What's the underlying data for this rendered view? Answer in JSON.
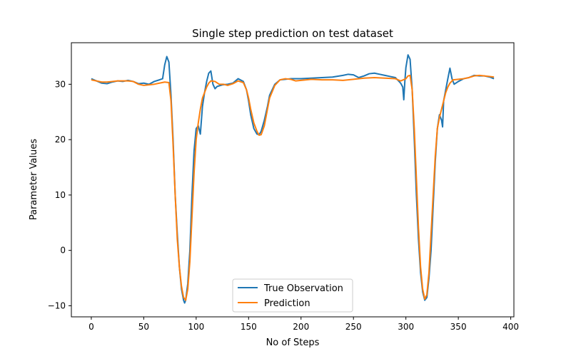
{
  "chart_data": {
    "type": "line",
    "title": "Single step prediction on test dataset",
    "xlabel": "No of Steps",
    "ylabel": "Parameter Values",
    "xlim": [
      -19,
      403
    ],
    "ylim": [
      -12,
      37.5
    ],
    "xticks": [
      0,
      50,
      100,
      150,
      200,
      250,
      300,
      350,
      400
    ],
    "yticks": [
      -10,
      0,
      10,
      20,
      30
    ],
    "ytick_labels": [
      "−10",
      "0",
      "10",
      "20",
      "30"
    ],
    "grid": false,
    "legend_position": "lower center",
    "series": [
      {
        "name": "True Observation",
        "color": "#1f77b4",
        "points": [
          [
            0,
            31.0
          ],
          [
            5,
            30.6
          ],
          [
            10,
            30.2
          ],
          [
            15,
            30.1
          ],
          [
            20,
            30.4
          ],
          [
            25,
            30.6
          ],
          [
            30,
            30.5
          ],
          [
            35,
            30.7
          ],
          [
            40,
            30.5
          ],
          [
            45,
            30.1
          ],
          [
            50,
            30.2
          ],
          [
            55,
            30.0
          ],
          [
            60,
            30.5
          ],
          [
            65,
            30.8
          ],
          [
            68,
            31.0
          ],
          [
            70,
            33.5
          ],
          [
            72,
            35.0
          ],
          [
            74,
            34.0
          ],
          [
            76,
            28.0
          ],
          [
            78,
            20.0
          ],
          [
            80,
            10.0
          ],
          [
            82,
            3.0
          ],
          [
            84,
            -3.0
          ],
          [
            86,
            -7.0
          ],
          [
            88,
            -9.0
          ],
          [
            89,
            -9.5
          ],
          [
            90,
            -9.0
          ],
          [
            92,
            -6.0
          ],
          [
            94,
            0.0
          ],
          [
            96,
            10.0
          ],
          [
            98,
            18.0
          ],
          [
            100,
            22.0
          ],
          [
            102,
            22.5
          ],
          [
            104,
            21.0
          ],
          [
            106,
            26.0
          ],
          [
            108,
            28.5
          ],
          [
            110,
            30.5
          ],
          [
            112,
            32.0
          ],
          [
            114,
            32.4
          ],
          [
            116,
            30.0
          ],
          [
            118,
            29.2
          ],
          [
            120,
            29.6
          ],
          [
            125,
            29.9
          ],
          [
            130,
            30.0
          ],
          [
            135,
            30.2
          ],
          [
            140,
            31.0
          ],
          [
            145,
            30.5
          ],
          [
            148,
            29.0
          ],
          [
            150,
            27.0
          ],
          [
            152,
            24.5
          ],
          [
            155,
            22.0
          ],
          [
            158,
            21.0
          ],
          [
            160,
            20.9
          ],
          [
            162,
            21.5
          ],
          [
            165,
            23.5
          ],
          [
            168,
            26.0
          ],
          [
            170,
            28.0
          ],
          [
            175,
            30.0
          ],
          [
            180,
            30.8
          ],
          [
            185,
            30.9
          ],
          [
            190,
            31.0
          ],
          [
            195,
            31.0
          ],
          [
            200,
            31.0
          ],
          [
            210,
            31.1
          ],
          [
            220,
            31.2
          ],
          [
            230,
            31.3
          ],
          [
            240,
            31.6
          ],
          [
            245,
            31.8
          ],
          [
            250,
            31.7
          ],
          [
            255,
            31.2
          ],
          [
            260,
            31.5
          ],
          [
            265,
            31.9
          ],
          [
            270,
            32.0
          ],
          [
            275,
            31.8
          ],
          [
            280,
            31.6
          ],
          [
            285,
            31.4
          ],
          [
            290,
            31.2
          ],
          [
            295,
            30.2
          ],
          [
            297,
            29.5
          ],
          [
            298,
            27.2
          ],
          [
            299,
            30.5
          ],
          [
            300,
            33.0
          ],
          [
            302,
            35.3
          ],
          [
            304,
            34.5
          ],
          [
            306,
            29.0
          ],
          [
            308,
            20.0
          ],
          [
            310,
            10.0
          ],
          [
            312,
            2.0
          ],
          [
            314,
            -4.0
          ],
          [
            316,
            -7.5
          ],
          [
            318,
            -9.0
          ],
          [
            320,
            -8.5
          ],
          [
            322,
            -5.0
          ],
          [
            324,
            0.0
          ],
          [
            326,
            8.0
          ],
          [
            328,
            16.0
          ],
          [
            330,
            22.0
          ],
          [
            332,
            24.5
          ],
          [
            334,
            23.5
          ],
          [
            335,
            22.3
          ],
          [
            336,
            27.0
          ],
          [
            338,
            29.0
          ],
          [
            340,
            31.0
          ],
          [
            342,
            32.9
          ],
          [
            344,
            31.0
          ],
          [
            346,
            30.0
          ],
          [
            350,
            30.5
          ],
          [
            355,
            31.0
          ],
          [
            360,
            31.2
          ],
          [
            365,
            31.6
          ],
          [
            370,
            31.5
          ],
          [
            375,
            31.5
          ],
          [
            380,
            31.3
          ],
          [
            384,
            31.0
          ]
        ]
      },
      {
        "name": "Prediction",
        "color": "#ff7f0e",
        "points": [
          [
            0,
            30.8
          ],
          [
            5,
            30.6
          ],
          [
            10,
            30.4
          ],
          [
            15,
            30.4
          ],
          [
            20,
            30.5
          ],
          [
            25,
            30.6
          ],
          [
            30,
            30.6
          ],
          [
            35,
            30.6
          ],
          [
            40,
            30.5
          ],
          [
            45,
            30.0
          ],
          [
            50,
            29.8
          ],
          [
            55,
            29.9
          ],
          [
            60,
            30.0
          ],
          [
            65,
            30.2
          ],
          [
            70,
            30.4
          ],
          [
            74,
            30.3
          ],
          [
            76,
            27.0
          ],
          [
            78,
            19.0
          ],
          [
            80,
            10.0
          ],
          [
            82,
            2.0
          ],
          [
            84,
            -3.0
          ],
          [
            86,
            -6.5
          ],
          [
            88,
            -8.5
          ],
          [
            90,
            -9.0
          ],
          [
            92,
            -7.0
          ],
          [
            94,
            -2.0
          ],
          [
            96,
            6.0
          ],
          [
            98,
            14.0
          ],
          [
            100,
            20.0
          ],
          [
            102,
            23.0
          ],
          [
            104,
            25.5
          ],
          [
            106,
            27.5
          ],
          [
            108,
            28.5
          ],
          [
            110,
            29.5
          ],
          [
            112,
            30.2
          ],
          [
            114,
            30.6
          ],
          [
            118,
            30.5
          ],
          [
            122,
            30.0
          ],
          [
            126,
            30.0
          ],
          [
            130,
            29.8
          ],
          [
            135,
            30.1
          ],
          [
            140,
            30.6
          ],
          [
            145,
            30.3
          ],
          [
            148,
            29.0
          ],
          [
            150,
            27.5
          ],
          [
            152,
            25.5
          ],
          [
            155,
            23.0
          ],
          [
            158,
            21.5
          ],
          [
            160,
            20.8
          ],
          [
            162,
            20.9
          ],
          [
            165,
            22.5
          ],
          [
            168,
            25.5
          ],
          [
            170,
            27.5
          ],
          [
            175,
            29.8
          ],
          [
            180,
            30.8
          ],
          [
            185,
            31.0
          ],
          [
            190,
            30.9
          ],
          [
            195,
            30.6
          ],
          [
            200,
            30.7
          ],
          [
            210,
            30.9
          ],
          [
            220,
            30.8
          ],
          [
            230,
            30.8
          ],
          [
            240,
            30.7
          ],
          [
            250,
            30.9
          ],
          [
            260,
            31.1
          ],
          [
            270,
            31.2
          ],
          [
            280,
            31.1
          ],
          [
            290,
            31.0
          ],
          [
            295,
            30.6
          ],
          [
            300,
            31.0
          ],
          [
            302,
            31.5
          ],
          [
            304,
            31.6
          ],
          [
            306,
            29.0
          ],
          [
            308,
            22.0
          ],
          [
            310,
            13.0
          ],
          [
            312,
            4.0
          ],
          [
            314,
            -3.0
          ],
          [
            316,
            -7.0
          ],
          [
            318,
            -8.8
          ],
          [
            320,
            -8.0
          ],
          [
            322,
            -4.0
          ],
          [
            324,
            3.0
          ],
          [
            326,
            10.0
          ],
          [
            328,
            17.0
          ],
          [
            330,
            22.0
          ],
          [
            332,
            24.0
          ],
          [
            334,
            25.5
          ],
          [
            336,
            27.0
          ],
          [
            338,
            28.5
          ],
          [
            340,
            29.5
          ],
          [
            342,
            30.2
          ],
          [
            345,
            30.8
          ],
          [
            350,
            30.9
          ],
          [
            355,
            31.0
          ],
          [
            360,
            31.2
          ],
          [
            365,
            31.5
          ],
          [
            370,
            31.6
          ],
          [
            375,
            31.5
          ],
          [
            380,
            31.4
          ],
          [
            384,
            31.3
          ]
        ]
      }
    ]
  }
}
